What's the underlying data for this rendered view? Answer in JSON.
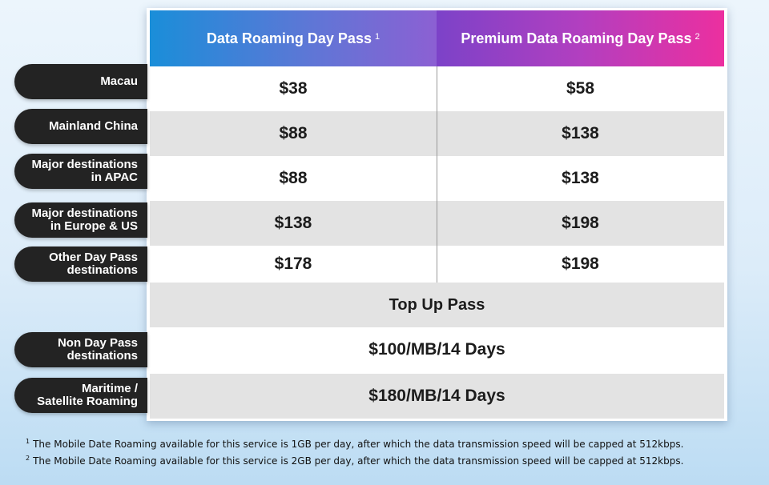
{
  "header": {
    "col1_label": "Data Roaming Day Pass",
    "col1_sup": "1",
    "col2_label": "Premium Data Roaming Day Pass",
    "col2_sup": "2"
  },
  "rows": [
    {
      "label": "Macau",
      "col1": "$38",
      "col2": "$58"
    },
    {
      "label": "Mainland China",
      "col1": "$88",
      "col2": "$138"
    },
    {
      "label": "Major destinations\nin APAC",
      "col1": "$88",
      "col2": "$138"
    },
    {
      "label": "Major destinations\nin Europe & US",
      "col1": "$138",
      "col2": "$198"
    },
    {
      "label": "Other Day Pass\ndestinations",
      "col1": "$178",
      "col2": "$198"
    }
  ],
  "topup": {
    "title": "Top Up Pass",
    "rows": [
      {
        "label": "Non Day Pass\ndestinations",
        "value": "$100/MB/14 Days"
      },
      {
        "label": "Maritime /\nSatellite Roaming",
        "value": "$180/MB/14 Days"
      }
    ]
  },
  "footnotes": [
    {
      "mark": "1",
      "text": "The Mobile Date Roaming available for this service is 1GB per day, after which the data transmission speed will be capped at 512kbps."
    },
    {
      "mark": "2",
      "text": "The Mobile Date Roaming available for this service is 2GB per day, after which the data transmission speed will be capped at 512kbps."
    }
  ],
  "colors": {
    "header_col1_gradient": [
      "#1a8ed9",
      "#8c60d3"
    ],
    "header_col2_gradient": [
      "#7c42c8",
      "#ec2f9f"
    ],
    "pill_background": "#232323",
    "row_alt_background": "#e3e3e3"
  }
}
